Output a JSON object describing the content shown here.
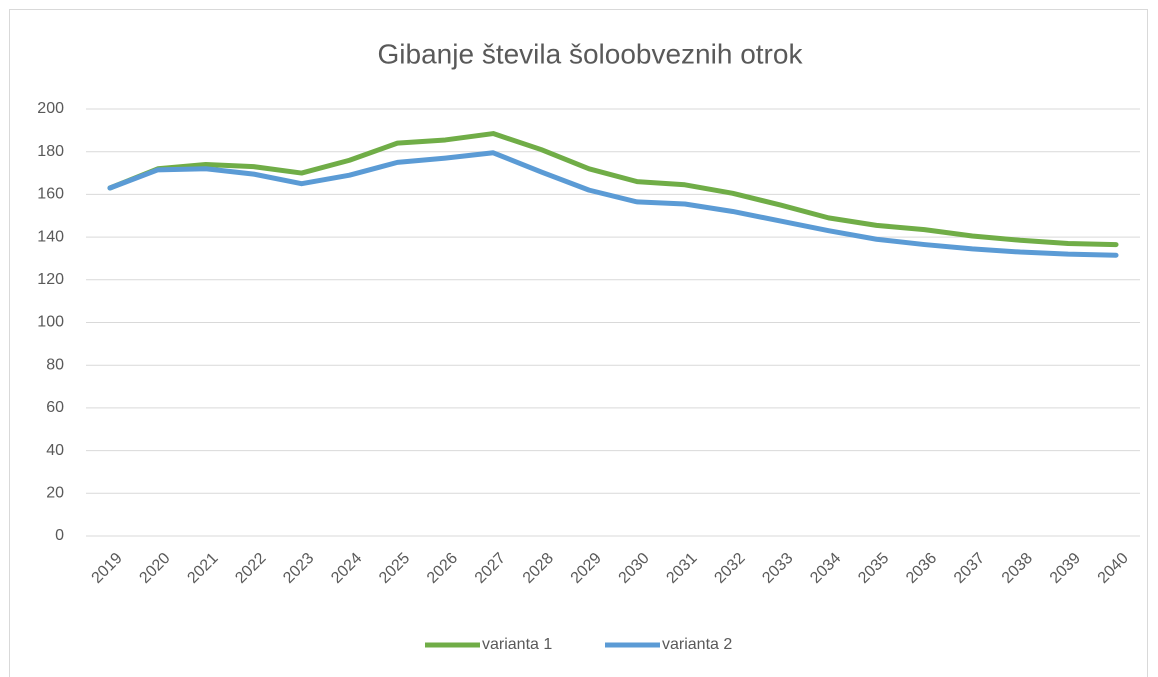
{
  "chart_data": {
    "type": "line",
    "title": "Gibanje števila šoloobveznih otrok",
    "categories": [
      "2019",
      "2020",
      "2021",
      "2022",
      "2023",
      "2024",
      "2025",
      "2026",
      "2027",
      "2028",
      "2029",
      "2030",
      "2031",
      "2032",
      "2033",
      "2034",
      "2035",
      "2036",
      "2037",
      "2038",
      "2039",
      "2040"
    ],
    "series": [
      {
        "name": "varianta 1",
        "color": "#70ad47",
        "values": [
          163,
          172,
          174,
          173,
          170,
          176,
          184,
          185.5,
          188.5,
          181,
          172,
          166,
          164.5,
          160.5,
          155,
          149,
          145.5,
          143.5,
          140.5,
          138.5,
          137,
          136.5
        ]
      },
      {
        "name": "varianta 2",
        "color": "#5b9bd5",
        "values": [
          163,
          171.5,
          172,
          169.5,
          165,
          169,
          175,
          177,
          179.5,
          170.5,
          162,
          156.5,
          155.5,
          152,
          147.5,
          143,
          139,
          136.5,
          134.5,
          133,
          132,
          131.5
        ]
      }
    ],
    "ylim": [
      0,
      200
    ],
    "yticks": [
      0,
      20,
      40,
      60,
      80,
      100,
      120,
      140,
      160,
      180,
      200
    ],
    "grid": true,
    "legend": "bottom"
  }
}
